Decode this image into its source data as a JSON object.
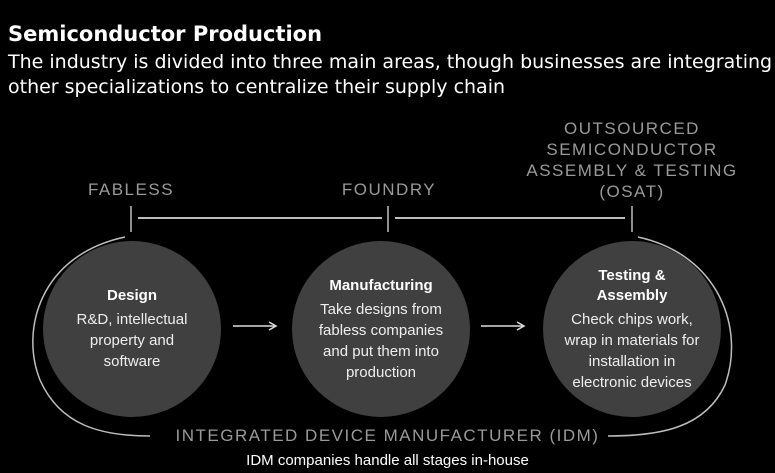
{
  "title": "Semiconductor Production",
  "subtitle": "The industry is divided into three main areas, though businesses are integrating other specializations to centralize their supply chain",
  "categories": [
    {
      "label": "FABLESS"
    },
    {
      "label": "FOUNDRY"
    },
    {
      "label": "OUTSOURCED SEMICONDUCTOR ASSEMBLY & TESTING (OSAT)"
    }
  ],
  "stages": [
    {
      "heading": "Design",
      "description": "R&D, intellectual property and software"
    },
    {
      "heading": "Manufacturing",
      "description": "Take designs from fabless companies and put them into production"
    },
    {
      "heading": "Testing & Assembly",
      "description": "Check chips work, wrap in materials for installation in electronic devices"
    }
  ],
  "idm": {
    "label": "INTEGRATED DEVICE MANUFACTURER (IDM)",
    "note": "IDM companies handle all stages in-house"
  },
  "colors": {
    "background": "#000000",
    "circle": "#404040",
    "category_text": "#9a9a9a",
    "lines": "#bdbdbd"
  }
}
